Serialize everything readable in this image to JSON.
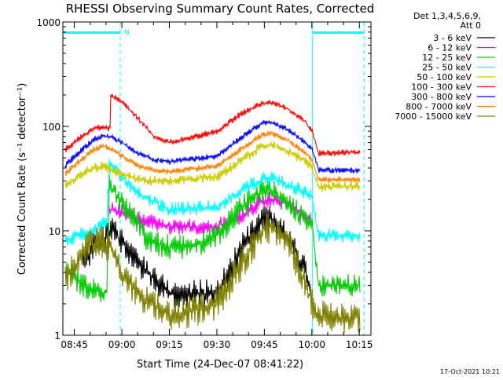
{
  "chart_data": {
    "type": "line",
    "title": "RHESSI Observing Summary Count Rates, Corrected",
    "xlabel": "Start Time (24-Dec-07 08:41:22)",
    "ylabel": "Corrected Count Rate (s⁻¹ detector⁻¹)",
    "y_scale": "log",
    "ylim": [
      1,
      1000
    ],
    "xlim": [
      "08:41:22",
      "10:18:40"
    ],
    "x_ticks": [
      "08:45",
      "09:00",
      "09:15",
      "09:30",
      "09:45",
      "10:00",
      "10:15"
    ],
    "y_ticks": [
      "1",
      "10",
      "100",
      "1000"
    ],
    "legend_title": [
      "Det 1,3,4,5,6,9,",
      "Att 0"
    ],
    "legend_position": "right",
    "footer_timestamp": "17-Oct-2021 10:21",
    "bar_annotation": "N",
    "markers": {
      "cyan_vertical_solid": [
        "08:41:22",
        "10:00:15"
      ],
      "cyan_vertical_dashed": [
        "08:59:30",
        "10:16:30"
      ],
      "top_bars": [
        [
          "08:41:22",
          "08:59:30"
        ],
        [
          "10:00:15",
          "10:16:30"
        ]
      ]
    },
    "series": [
      {
        "name": "3 - 6 keV",
        "color": "#000000",
        "x": [
          "08:47:30",
          "08:52:00",
          "08:57:00",
          "09:05:00",
          "09:15:00",
          "09:30:00",
          "09:38:00",
          "09:44:00",
          "09:47:00",
          "09:52:00",
          "09:58:00",
          "10:00:00"
        ],
        "y": [
          5.0,
          7.5,
          10,
          5,
          2.5,
          2.5,
          7,
          12,
          13,
          9,
          4,
          2.5
        ]
      },
      {
        "name": "6 - 12 keV",
        "color": "#ff00ff",
        "x": [
          "08:56:00",
          "09:00:00",
          "09:05:00",
          "09:15:00",
          "09:30:00",
          "09:38:00",
          "09:44:00",
          "09:47:00",
          "09:52:00",
          "09:58:00",
          "10:00:00"
        ],
        "y": [
          16,
          15,
          13,
          11,
          11,
          14,
          19,
          20,
          18,
          14,
          12
        ]
      },
      {
        "name": "12 - 25 keV",
        "color": "#00cc00",
        "x": [
          "08:42:00",
          "08:44:00",
          "08:47:00",
          "08:51:00",
          "08:55:00",
          "08:56:00",
          "09:00:00",
          "09:05:00",
          "09:08:00",
          "09:15:00",
          "09:22:00",
          "09:30:00",
          "09:38:00",
          "09:44:00",
          "09:47:00",
          "09:52:00",
          "09:58:00",
          "10:00:00",
          "10:02:00",
          "10:15:00"
        ],
        "y": [
          4,
          4,
          3,
          2.8,
          2.5,
          28,
          18,
          12,
          8,
          7,
          7,
          9,
          17,
          24,
          25,
          18,
          13,
          12,
          3,
          3
        ]
      },
      {
        "name": "25 - 50 keV",
        "color": "#00ffff",
        "x": [
          "08:42:00",
          "08:46:00",
          "08:50:00",
          "08:55:00",
          "08:56:00",
          "08:58:00",
          "09:02:00",
          "09:08:00",
          "09:15:00",
          "09:30:00",
          "09:38:00",
          "09:44:00",
          "09:47:00",
          "09:52:00",
          "09:58:00",
          "10:00:00",
          "10:02:00",
          "10:15:00"
        ],
        "y": [
          8,
          9,
          10,
          12,
          42,
          38,
          28,
          20,
          16,
          17,
          25,
          31,
          32,
          28,
          23,
          21,
          9,
          9
        ]
      },
      {
        "name": "50 - 100 keV",
        "color": "#cccc00",
        "x": [
          "08:42:00",
          "08:46:00",
          "08:51:00",
          "08:54:00",
          "08:57:00",
          "09:00:00",
          "09:05:00",
          "09:10:00",
          "09:15:00",
          "09:30:00",
          "09:38:00",
          "09:44:00",
          "09:47:00",
          "09:52:00",
          "09:58:00",
          "10:00:00",
          "10:02:00",
          "10:15:00"
        ],
        "y": [
          27,
          33,
          40,
          42,
          38,
          35,
          31,
          30,
          30,
          33,
          48,
          64,
          67,
          58,
          46,
          40,
          26,
          27
        ]
      },
      {
        "name": "100 - 300 keV",
        "color": "#ff0000",
        "x": [
          "08:42:00",
          "08:46:00",
          "08:51:00",
          "08:54:00",
          "08:56:00",
          "08:56:30",
          "09:00:00",
          "09:05:00",
          "09:10:00",
          "09:15:00",
          "09:30:00",
          "09:38:00",
          "09:44:00",
          "09:47:00",
          "09:52:00",
          "09:58:00",
          "10:00:00",
          "10:02:00",
          "10:15:00"
        ],
        "y": [
          60,
          75,
          95,
          100,
          95,
          200,
          170,
          120,
          80,
          70,
          90,
          135,
          165,
          170,
          150,
          110,
          90,
          55,
          57
        ]
      },
      {
        "name": "300 - 800 keV",
        "color": "#0000ff",
        "x": [
          "08:42:00",
          "08:46:00",
          "08:51:00",
          "08:54:00",
          "08:57:00",
          "09:00:00",
          "09:05:00",
          "09:10:00",
          "09:15:00",
          "09:30:00",
          "09:38:00",
          "09:44:00",
          "09:47:00",
          "09:52:00",
          "09:58:00",
          "10:00:00",
          "10:02:00",
          "10:15:00"
        ],
        "y": [
          42,
          55,
          75,
          82,
          78,
          70,
          55,
          48,
          46,
          52,
          80,
          108,
          110,
          95,
          70,
          60,
          38,
          38
        ]
      },
      {
        "name": "800 - 7000 keV",
        "color": "#ff8000",
        "x": [
          "08:42:00",
          "08:46:00",
          "08:51:00",
          "08:54:00",
          "08:57:00",
          "09:00:00",
          "09:05:00",
          "09:10:00",
          "09:15:00",
          "09:30:00",
          "09:38:00",
          "09:44:00",
          "09:47:00",
          "09:52:00",
          "09:58:00",
          "10:00:00",
          "10:02:00",
          "10:15:00"
        ],
        "y": [
          35,
          45,
          60,
          65,
          60,
          52,
          42,
          38,
          37,
          42,
          62,
          82,
          86,
          75,
          55,
          48,
          31,
          31
        ]
      },
      {
        "name": "7000 - 15000 keV",
        "color": "#808000",
        "x": [
          "08:42:00",
          "08:46:00",
          "08:50:00",
          "08:53:00",
          "08:56:00",
          "09:00:00",
          "09:05:00",
          "09:10:00",
          "09:15:00",
          "09:30:00",
          "09:38:00",
          "09:44:00",
          "09:47:00",
          "09:52:00",
          "09:58:00",
          "10:00:00",
          "10:02:00",
          "10:15:00"
        ],
        "y": [
          3.5,
          5,
          7.5,
          8,
          7,
          4,
          2.5,
          2,
          1.5,
          2,
          5,
          10,
          11,
          8,
          3,
          2,
          1.5,
          1.5
        ]
      }
    ]
  }
}
